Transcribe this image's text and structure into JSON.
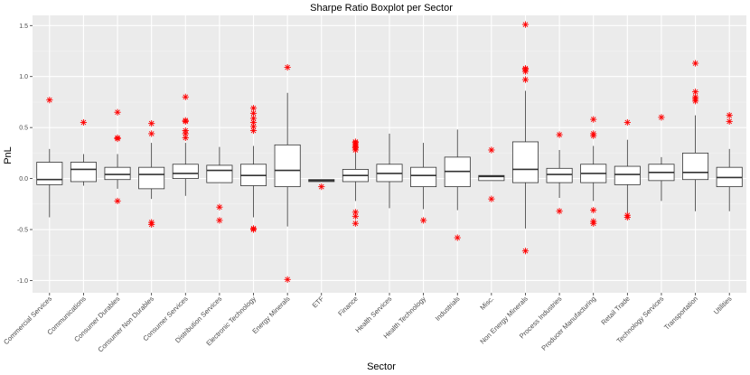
{
  "chart_data": {
    "type": "boxplot",
    "title": "Sharpe Ratio Boxplot per Sector",
    "xlabel": "Sector",
    "ylabel": "PnL",
    "ylim": [
      -1.12,
      1.6
    ],
    "yticks": [
      -1.0,
      -0.5,
      0.0,
      0.5,
      1.0,
      1.5
    ],
    "ytick_labels": [
      "-1.0",
      "-0.5",
      "0.0",
      "0.5",
      "1.0",
      "1.5"
    ],
    "grid": true,
    "colors": {
      "panel": "#ebebeb",
      "grid_major": "#ffffff",
      "grid_minor": "#f5f5f5",
      "box_fill": "#ffffff",
      "box_line": "#333333",
      "outlier": "#ff0000"
    },
    "categories": [
      {
        "name": "Commercial Services",
        "whisker_low": -0.38,
        "q1": -0.06,
        "median": -0.01,
        "q3": 0.16,
        "whisker_high": 0.29,
        "outliers": [
          0.77
        ]
      },
      {
        "name": "Communications",
        "whisker_low": -0.07,
        "q1": -0.03,
        "median": 0.09,
        "q3": 0.16,
        "whisker_high": 0.24,
        "outliers": [
          0.55
        ]
      },
      {
        "name": "Consumer Durables",
        "whisker_low": -0.1,
        "q1": -0.01,
        "median": 0.04,
        "q3": 0.11,
        "whisker_high": 0.24,
        "outliers": [
          -0.22,
          0.39,
          0.4,
          0.65
        ]
      },
      {
        "name": "Consumer Non Durables",
        "whisker_low": -0.2,
        "q1": -0.1,
        "median": 0.04,
        "q3": 0.11,
        "whisker_high": 0.35,
        "outliers": [
          -0.43,
          -0.45,
          0.44,
          0.54
        ]
      },
      {
        "name": "Consumer Services",
        "whisker_low": -0.17,
        "q1": 0.0,
        "median": 0.05,
        "q3": 0.14,
        "whisker_high": 0.35,
        "outliers": [
          0.4,
          0.44,
          0.47,
          0.56,
          0.57,
          0.8
        ]
      },
      {
        "name": "Distribution Services",
        "whisker_low": -0.04,
        "q1": -0.04,
        "median": 0.08,
        "q3": 0.13,
        "whisker_high": 0.31,
        "outliers": [
          -0.28,
          -0.41
        ]
      },
      {
        "name": "Electronic Technology",
        "whisker_low": -0.38,
        "q1": -0.07,
        "median": 0.03,
        "q3": 0.14,
        "whisker_high": 0.32,
        "outliers": [
          -0.49,
          -0.5,
          0.47,
          0.51,
          0.55,
          0.59,
          0.64,
          0.69
        ]
      },
      {
        "name": "Energy Minerals",
        "whisker_low": -0.47,
        "q1": -0.08,
        "median": 0.08,
        "q3": 0.33,
        "whisker_high": 0.84,
        "outliers": [
          -0.99,
          1.09
        ]
      },
      {
        "name": "ETF",
        "whisker_low": -0.03,
        "q1": -0.03,
        "median": -0.02,
        "q3": -0.01,
        "whisker_high": -0.01,
        "outliers": [
          -0.08
        ]
      },
      {
        "name": "Finance",
        "whisker_low": -0.22,
        "q1": -0.03,
        "median": 0.03,
        "q3": 0.09,
        "whisker_high": 0.26,
        "outliers": [
          -0.33,
          -0.37,
          -0.44,
          0.28,
          0.3,
          0.31,
          0.33,
          0.35,
          0.36
        ]
      },
      {
        "name": "Health Services",
        "whisker_low": -0.29,
        "q1": -0.03,
        "median": 0.05,
        "q3": 0.14,
        "whisker_high": 0.44,
        "outliers": []
      },
      {
        "name": "Health Technology",
        "whisker_low": -0.3,
        "q1": -0.08,
        "median": 0.03,
        "q3": 0.11,
        "whisker_high": 0.35,
        "outliers": [
          -0.41
        ]
      },
      {
        "name": "Industrials",
        "whisker_low": -0.31,
        "q1": -0.08,
        "median": 0.07,
        "q3": 0.21,
        "whisker_high": 0.48,
        "outliers": [
          -0.58
        ]
      },
      {
        "name": "Misc.",
        "whisker_low": -0.02,
        "q1": -0.02,
        "median": 0.02,
        "q3": 0.03,
        "whisker_high": 0.03,
        "outliers": [
          -0.2,
          0.28
        ]
      },
      {
        "name": "Non Energy Minerals",
        "whisker_low": -0.49,
        "q1": -0.04,
        "median": 0.09,
        "q3": 0.36,
        "whisker_high": 0.86,
        "outliers": [
          -0.71,
          0.97,
          1.05,
          1.07,
          1.08,
          1.51
        ]
      },
      {
        "name": "Process Industries",
        "whisker_low": -0.19,
        "q1": -0.04,
        "median": 0.04,
        "q3": 0.1,
        "whisker_high": 0.28,
        "outliers": [
          -0.32,
          0.43
        ]
      },
      {
        "name": "Producer Manufacturing",
        "whisker_low": -0.22,
        "q1": -0.04,
        "median": 0.05,
        "q3": 0.14,
        "whisker_high": 0.32,
        "outliers": [
          -0.31,
          -0.42,
          -0.44,
          0.42,
          0.44,
          0.58
        ]
      },
      {
        "name": "Retail Trade",
        "whisker_low": -0.34,
        "q1": -0.06,
        "median": 0.04,
        "q3": 0.12,
        "whisker_high": 0.38,
        "outliers": [
          -0.36,
          -0.38,
          0.55
        ]
      },
      {
        "name": "Technology Services",
        "whisker_low": -0.22,
        "q1": -0.02,
        "median": 0.06,
        "q3": 0.14,
        "whisker_high": 0.21,
        "outliers": [
          0.6
        ]
      },
      {
        "name": "Transportation",
        "whisker_low": -0.32,
        "q1": -0.01,
        "median": 0.06,
        "q3": 0.25,
        "whisker_high": 0.62,
        "outliers": [
          0.76,
          0.78,
          0.8,
          0.85,
          1.13
        ]
      },
      {
        "name": "Utilities",
        "whisker_low": -0.32,
        "q1": -0.08,
        "median": 0.01,
        "q3": 0.11,
        "whisker_high": 0.29,
        "outliers": [
          0.56,
          0.62
        ]
      }
    ]
  }
}
